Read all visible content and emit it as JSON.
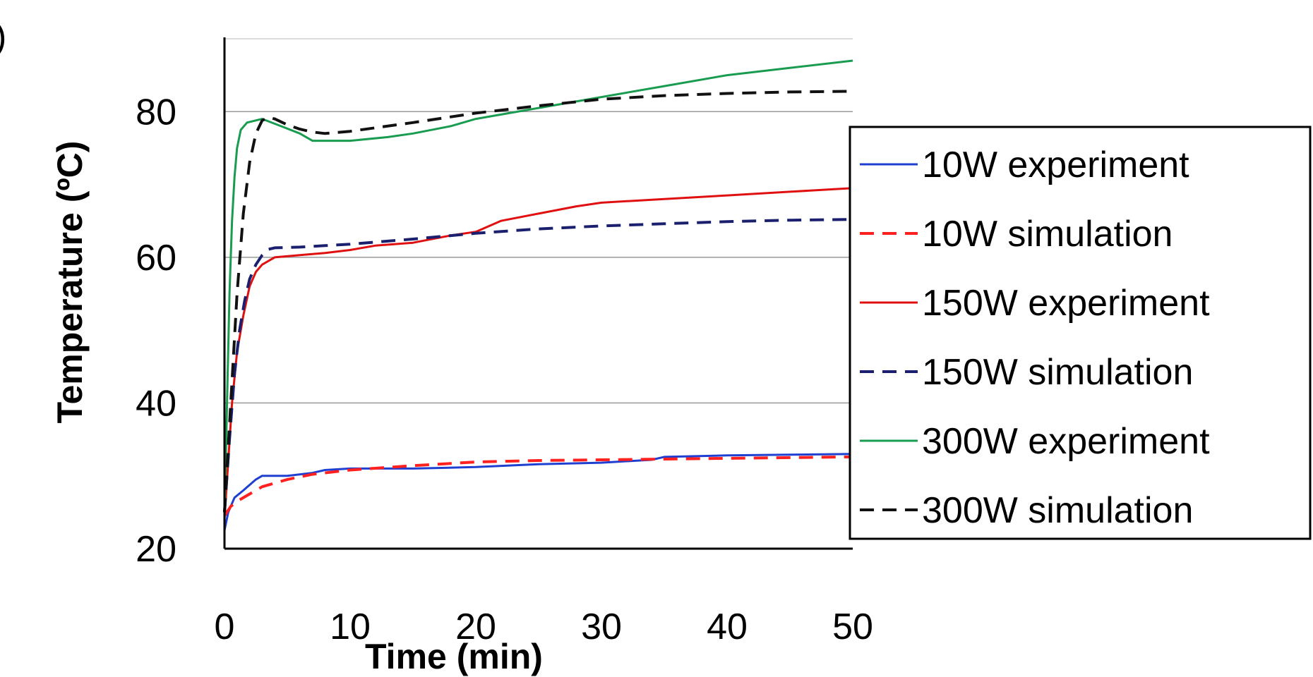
{
  "panel_label": ")",
  "chart_data": {
    "type": "line",
    "xlabel": "Time (min)",
    "ylabel": "Temperature (ºC)",
    "xlim": [
      0,
      50
    ],
    "ylim": [
      20,
      90
    ],
    "x_ticks": [
      0,
      10,
      20,
      30,
      40,
      50
    ],
    "y_ticks": [
      20,
      40,
      60,
      80
    ],
    "grid": "horizontal",
    "legend_position": "right",
    "series": [
      {
        "name": "10W experiment",
        "color": "#1f3fd0",
        "style": "solid",
        "points": [
          [
            0,
            22.5
          ],
          [
            0.3,
            25
          ],
          [
            0.8,
            27
          ],
          [
            1.5,
            28
          ],
          [
            2.5,
            29.5
          ],
          [
            3,
            30
          ],
          [
            5,
            30
          ],
          [
            7,
            30.4
          ],
          [
            8,
            30.8
          ],
          [
            10,
            31
          ],
          [
            15,
            31
          ],
          [
            20,
            31.2
          ],
          [
            25,
            31.6
          ],
          [
            30,
            31.8
          ],
          [
            34,
            32.2
          ],
          [
            35,
            32.6
          ],
          [
            40,
            32.8
          ],
          [
            45,
            32.9
          ],
          [
            50,
            33
          ]
        ]
      },
      {
        "name": "10W simulation",
        "color": "#ff2020",
        "style": "dashed",
        "points": [
          [
            0,
            24.5
          ],
          [
            0.5,
            25.8
          ],
          [
            1,
            26.5
          ],
          [
            2,
            27.5
          ],
          [
            3,
            28.5
          ],
          [
            5,
            29.5
          ],
          [
            7,
            30.2
          ],
          [
            10,
            30.8
          ],
          [
            15,
            31.4
          ],
          [
            20,
            31.9
          ],
          [
            25,
            32.1
          ],
          [
            30,
            32.2
          ],
          [
            35,
            32.3
          ],
          [
            40,
            32.4
          ],
          [
            45,
            32.5
          ],
          [
            50,
            32.6
          ]
        ]
      },
      {
        "name": "150W experiment",
        "color": "#e01010",
        "style": "solid",
        "points": [
          [
            0,
            24
          ],
          [
            0.3,
            32
          ],
          [
            0.6,
            40
          ],
          [
            1,
            47
          ],
          [
            1.5,
            52
          ],
          [
            2,
            56
          ],
          [
            2.5,
            58
          ],
          [
            3,
            59
          ],
          [
            4,
            60
          ],
          [
            6,
            60.3
          ],
          [
            8,
            60.6
          ],
          [
            10,
            61
          ],
          [
            12,
            61.6
          ],
          [
            15,
            62
          ],
          [
            18,
            63
          ],
          [
            20,
            63.5
          ],
          [
            22,
            65
          ],
          [
            25,
            66
          ],
          [
            28,
            67
          ],
          [
            30,
            67.5
          ],
          [
            35,
            68
          ],
          [
            40,
            68.5
          ],
          [
            45,
            69
          ],
          [
            50,
            69.5
          ]
        ]
      },
      {
        "name": "150W simulation",
        "color": "#1a1f6e",
        "style": "dashed",
        "points": [
          [
            0,
            25
          ],
          [
            0.4,
            35
          ],
          [
            0.8,
            44
          ],
          [
            1.2,
            50
          ],
          [
            1.6,
            54
          ],
          [
            2,
            57
          ],
          [
            2.5,
            59
          ],
          [
            3,
            60.3
          ],
          [
            3.5,
            61.1
          ],
          [
            4,
            61.3
          ],
          [
            6,
            61.4
          ],
          [
            8,
            61.6
          ],
          [
            10,
            61.8
          ],
          [
            15,
            62.5
          ],
          [
            20,
            63.3
          ],
          [
            25,
            63.9
          ],
          [
            30,
            64.3
          ],
          [
            35,
            64.6
          ],
          [
            40,
            64.9
          ],
          [
            45,
            65.1
          ],
          [
            50,
            65.2
          ]
        ]
      },
      {
        "name": "300W experiment",
        "color": "#1a9c50",
        "style": "solid",
        "points": [
          [
            0,
            24
          ],
          [
            0.2,
            40
          ],
          [
            0.4,
            55
          ],
          [
            0.6,
            65
          ],
          [
            0.8,
            71
          ],
          [
            1,
            75
          ],
          [
            1.3,
            77.5
          ],
          [
            1.8,
            78.5
          ],
          [
            3,
            79
          ],
          [
            4.5,
            78
          ],
          [
            6,
            77
          ],
          [
            7,
            76
          ],
          [
            10,
            76
          ],
          [
            13,
            76.5
          ],
          [
            15,
            77
          ],
          [
            18,
            78
          ],
          [
            20,
            79
          ],
          [
            25,
            80.5
          ],
          [
            30,
            82
          ],
          [
            35,
            83.5
          ],
          [
            40,
            85
          ],
          [
            45,
            86
          ],
          [
            50,
            87
          ]
        ]
      },
      {
        "name": "300W simulation",
        "color": "#111111",
        "style": "dashed",
        "points": [
          [
            0,
            25
          ],
          [
            0.5,
            40
          ],
          [
            1,
            55
          ],
          [
            1.5,
            66
          ],
          [
            2,
            73
          ],
          [
            2.5,
            77
          ],
          [
            3,
            78.8
          ],
          [
            3.5,
            79.2
          ],
          [
            4,
            79
          ],
          [
            5,
            78.2
          ],
          [
            6,
            77.6
          ],
          [
            7,
            77.2
          ],
          [
            8,
            77
          ],
          [
            10,
            77.3
          ],
          [
            15,
            78.5
          ],
          [
            20,
            79.8
          ],
          [
            25,
            80.8
          ],
          [
            30,
            81.7
          ],
          [
            35,
            82.2
          ],
          [
            40,
            82.5
          ],
          [
            45,
            82.7
          ],
          [
            50,
            82.8
          ]
        ]
      }
    ]
  }
}
